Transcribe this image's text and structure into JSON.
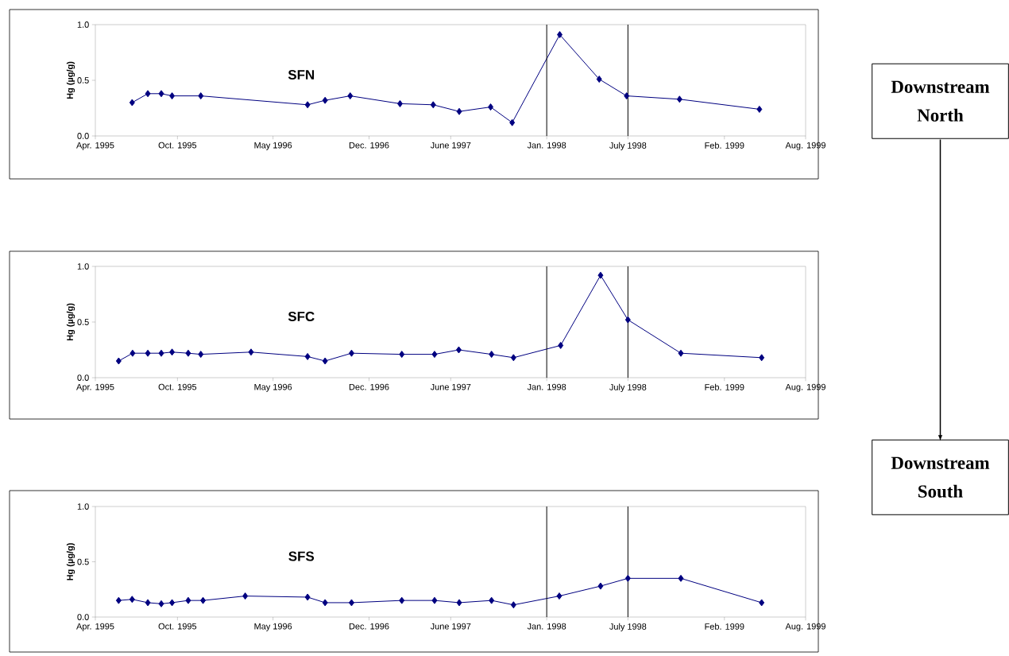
{
  "chart_data": [
    {
      "type": "line",
      "title": "SFN",
      "ylabel": "Hg (µg/g)",
      "marker": "diamond",
      "line_style": "solid",
      "grid": false,
      "legend": false,
      "series": [
        {
          "color": "#000080",
          "x": [
            "1995-06-22",
            "1995-07-27",
            "1995-08-26",
            "1995-09-19",
            "1995-11-22",
            "1996-07-17",
            "1996-08-25",
            "1996-10-20",
            "1997-02-08",
            "1997-04-23",
            "1997-06-20",
            "1997-08-29",
            "1997-10-16",
            "1998-01-30",
            "1998-04-28",
            "1998-06-28",
            "1998-10-24",
            "1999-04-20"
          ],
          "values": [
            0.3,
            0.38,
            0.38,
            0.36,
            0.36,
            0.28,
            0.32,
            0.36,
            0.29,
            0.28,
            0.22,
            0.26,
            0.12,
            0.91,
            0.51,
            0.36,
            0.33,
            0.24
          ]
        }
      ],
      "xlim": [
        "1995-04-01",
        "1999-08-01"
      ],
      "ylim": [
        0,
        1
      ],
      "xticks": [
        {
          "value": "1995-04-01",
          "label": "Apr. 1995"
        },
        {
          "value": "1995-10-01",
          "label": "Oct. 1995"
        },
        {
          "value": "1996-05-01",
          "label": "May 1996"
        },
        {
          "value": "1996-12-01",
          "label": "Dec. 1996"
        },
        {
          "value": "1997-06-01",
          "label": "June 1997"
        },
        {
          "value": "1998-01-01",
          "label": "Jan. 1998"
        },
        {
          "value": "1998-07-01",
          "label": "July 1998"
        },
        {
          "value": "1999-02-01",
          "label": "Feb. 1999"
        },
        {
          "value": "1999-08-01",
          "label": "Aug. 1999"
        }
      ],
      "yticks": [
        {
          "value": 0,
          "label": "0.0"
        },
        {
          "value": 0.5,
          "label": "0.5"
        },
        {
          "value": 1,
          "label": "1.0"
        }
      ],
      "ref_lines": [
        {
          "axis": "x",
          "value": "1998-01-01",
          "color": "#000000"
        },
        {
          "axis": "x",
          "value": "1998-07-01",
          "color": "#000000"
        }
      ]
    },
    {
      "type": "line",
      "title": "SFC",
      "ylabel": "Hg (µg/g)",
      "marker": "diamond",
      "line_style": "solid",
      "grid": false,
      "legend": false,
      "series": [
        {
          "color": "#000080",
          "x": [
            "1995-05-23",
            "1995-06-23",
            "1995-07-27",
            "1995-08-26",
            "1995-09-19",
            "1995-10-25",
            "1995-11-22",
            "1996-03-13",
            "1996-07-17",
            "1996-08-25",
            "1996-10-23",
            "1997-02-12",
            "1997-04-26",
            "1997-06-19",
            "1997-08-31",
            "1997-10-19",
            "1998-02-01",
            "1998-05-01",
            "1998-07-01",
            "1998-10-27",
            "1999-04-25"
          ],
          "values": [
            0.15,
            0.22,
            0.22,
            0.22,
            0.23,
            0.22,
            0.21,
            0.23,
            0.19,
            0.15,
            0.22,
            0.21,
            0.21,
            0.25,
            0.21,
            0.18,
            0.29,
            0.92,
            0.52,
            0.22,
            0.18
          ]
        }
      ],
      "xlim": [
        "1995-04-01",
        "1999-08-01"
      ],
      "ylim": [
        0,
        1
      ],
      "xticks": [
        {
          "value": "1995-04-01",
          "label": "Apr. 1995"
        },
        {
          "value": "1995-10-01",
          "label": "Oct. 1995"
        },
        {
          "value": "1996-05-01",
          "label": "May 1996"
        },
        {
          "value": "1996-12-01",
          "label": "Dec. 1996"
        },
        {
          "value": "1997-06-01",
          "label": "June 1997"
        },
        {
          "value": "1998-01-01",
          "label": "Jan. 1998"
        },
        {
          "value": "1998-07-01",
          "label": "July 1998"
        },
        {
          "value": "1999-02-01",
          "label": "Feb. 1999"
        },
        {
          "value": "1999-08-01",
          "label": "Aug. 1999"
        }
      ],
      "yticks": [
        {
          "value": 0,
          "label": "0.0"
        },
        {
          "value": 0.5,
          "label": "0.5"
        },
        {
          "value": 1,
          "label": "1.0"
        }
      ],
      "ref_lines": [
        {
          "axis": "x",
          "value": "1998-01-01",
          "color": "#000000"
        },
        {
          "axis": "x",
          "value": "1998-07-01",
          "color": "#000000"
        }
      ]
    },
    {
      "type": "line",
      "title": "SFS",
      "ylabel": "Hg (µg/g)",
      "marker": "diamond",
      "line_style": "solid",
      "grid": false,
      "legend": false,
      "series": [
        {
          "color": "#000080",
          "x": [
            "1995-05-23",
            "1995-06-22",
            "1995-07-27",
            "1995-08-26",
            "1995-09-19",
            "1995-10-25",
            "1995-11-27",
            "1996-02-29",
            "1996-07-17",
            "1996-08-25",
            "1996-10-23",
            "1997-02-12",
            "1997-04-26",
            "1997-06-20",
            "1997-08-31",
            "1997-10-19",
            "1998-01-29",
            "1998-05-01",
            "1998-07-01",
            "1998-10-27",
            "1999-04-25"
          ],
          "values": [
            0.15,
            0.16,
            0.13,
            0.12,
            0.13,
            0.15,
            0.15,
            0.19,
            0.18,
            0.13,
            0.13,
            0.15,
            0.15,
            0.13,
            0.15,
            0.11,
            0.19,
            0.28,
            0.35,
            0.35,
            0.13
          ]
        }
      ],
      "xlim": [
        "1995-04-01",
        "1999-08-01"
      ],
      "ylim": [
        0,
        1
      ],
      "xticks": [
        {
          "value": "1995-04-01",
          "label": "Apr. 1995"
        },
        {
          "value": "1995-10-01",
          "label": "Oct. 1995"
        },
        {
          "value": "1996-05-01",
          "label": "May 1996"
        },
        {
          "value": "1996-12-01",
          "label": "Dec. 1996"
        },
        {
          "value": "1997-06-01",
          "label": "June 1997"
        },
        {
          "value": "1998-01-01",
          "label": "Jan. 1998"
        },
        {
          "value": "1998-07-01",
          "label": "July 1998"
        },
        {
          "value": "1999-02-01",
          "label": "Feb. 1999"
        },
        {
          "value": "1999-08-01",
          "label": "Aug. 1999"
        }
      ],
      "yticks": [
        {
          "value": 0,
          "label": "0.0"
        },
        {
          "value": 0.5,
          "label": "0.5"
        },
        {
          "value": 1,
          "label": "1.0"
        }
      ],
      "ref_lines": [
        {
          "axis": "x",
          "value": "1998-01-01",
          "color": "#000000"
        },
        {
          "axis": "x",
          "value": "1998-07-01",
          "color": "#000000"
        }
      ]
    },
    {
      "type": "other",
      "annotations": [
        "Downstream North",
        "Downstream South"
      ]
    }
  ]
}
